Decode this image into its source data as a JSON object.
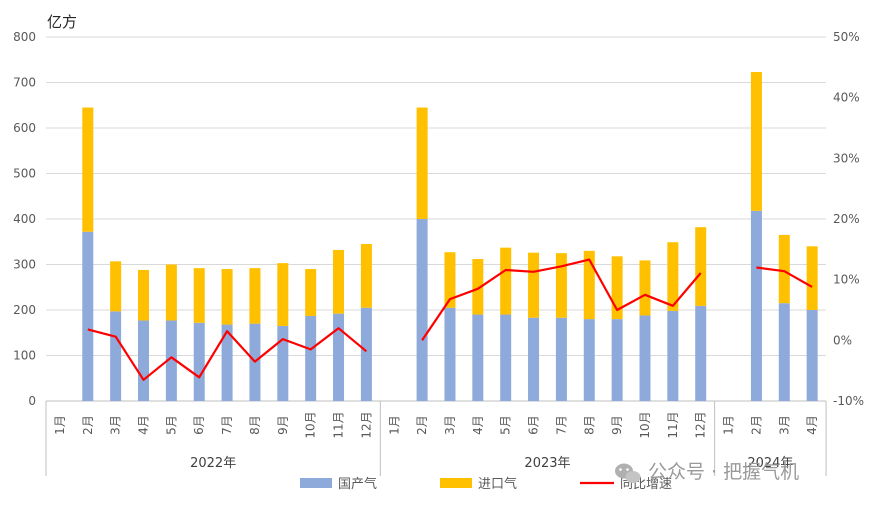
{
  "chart_data": {
    "type": "bar",
    "stacked": true,
    "unit_label": "亿方",
    "y_left": {
      "min": 0,
      "max": 800,
      "step": 100,
      "ticks": [
        "0",
        "100",
        "200",
        "300",
        "400",
        "500",
        "600",
        "700",
        "800"
      ]
    },
    "y_right": {
      "min": -10,
      "max": 50,
      "step": 10,
      "ticks": [
        "-10%",
        "0%",
        "10%",
        "20%",
        "30%",
        "40%",
        "50%"
      ]
    },
    "groups": [
      {
        "year": "2022年",
        "months": [
          "1月",
          "2月",
          "3月",
          "4月",
          "5月",
          "6月",
          "7月",
          "8月",
          "9月",
          "10月",
          "11月",
          "12月"
        ]
      },
      {
        "year": "2023年",
        "months": [
          "1月",
          "2月",
          "3月",
          "4月",
          "5月",
          "6月",
          "7月",
          "8月",
          "9月",
          "10月",
          "11月",
          "12月"
        ]
      },
      {
        "year": "2024年",
        "months": [
          "1月",
          "2月",
          "3月",
          "4月"
        ]
      }
    ],
    "series": [
      {
        "name": "国产气",
        "color": "#8eaadb",
        "kind": "bar",
        "values": [
          null,
          372,
          197,
          177,
          177,
          172,
          168,
          170,
          165,
          187,
          192,
          205,
          null,
          400,
          205,
          190,
          190,
          183,
          183,
          180,
          180,
          188,
          198,
          209,
          null,
          418,
          215,
          200
        ]
      },
      {
        "name": "进口气",
        "color": "#ffc000",
        "kind": "bar",
        "values": [
          null,
          273,
          110,
          111,
          123,
          120,
          122,
          122,
          138,
          103,
          140,
          140,
          null,
          245,
          122,
          122,
          147,
          143,
          142,
          150,
          138,
          121,
          151,
          173,
          null,
          305,
          150,
          140
        ]
      },
      {
        "name": "同比增速",
        "color": "#ff0000",
        "kind": "line",
        "values": [
          null,
          1.8,
          0.6,
          -6.5,
          -2.8,
          -6.1,
          1.5,
          -3.5,
          0.2,
          -1.5,
          2.0,
          -1.8,
          null,
          0.0,
          6.8,
          8.5,
          11.6,
          11.3,
          12.2,
          13.3,
          5.0,
          7.5,
          5.7,
          11.1,
          null,
          12.0,
          11.4,
          8.8
        ]
      }
    ]
  },
  "watermark": "公众号 · 把握气机"
}
